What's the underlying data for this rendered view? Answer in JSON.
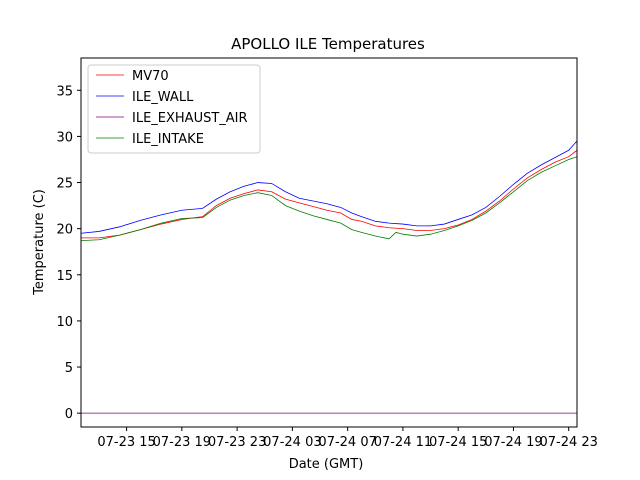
{
  "chart_data": {
    "type": "line",
    "title": "APOLLO ILE Temperatures",
    "xlabel": "Date (GMT)",
    "ylabel": "Temperature (C)",
    "x_unit": "hours since 07-23 00:00 GMT",
    "xlim": [
      11.7,
      47.6
    ],
    "ylim": [
      -1.5,
      38.5
    ],
    "yticks": [
      0,
      5,
      10,
      15,
      20,
      25,
      30,
      35
    ],
    "xticks": [
      {
        "value": 15,
        "label": "07-23 15"
      },
      {
        "value": 19,
        "label": "07-23 19"
      },
      {
        "value": 23,
        "label": "07-23 23"
      },
      {
        "value": 27,
        "label": "07-24 03"
      },
      {
        "value": 31,
        "label": "07-24 07"
      },
      {
        "value": 35,
        "label": "07-24 11"
      },
      {
        "value": 39,
        "label": "07-24 15"
      },
      {
        "value": 43,
        "label": "07-24 19"
      },
      {
        "value": 47,
        "label": "07-24 23"
      }
    ],
    "legend_position": "upper-left",
    "series": [
      {
        "name": "MV70",
        "color": "#ff0000",
        "x": [
          11.7,
          13.0,
          14.5,
          16.0,
          17.5,
          19.0,
          20.5,
          21.5,
          22.5,
          23.5,
          24.5,
          25.5,
          26.5,
          27.5,
          28.5,
          29.5,
          30.5,
          31.3,
          32.0,
          33.0,
          34.0,
          35.0,
          36.0,
          37.0,
          38.0,
          39.0,
          40.0,
          41.0,
          42.0,
          43.0,
          44.0,
          45.0,
          46.0,
          47.0,
          47.6
        ],
        "values": [
          19.0,
          19.0,
          19.3,
          19.9,
          20.5,
          21.0,
          21.3,
          22.5,
          23.3,
          23.8,
          24.2,
          24.0,
          23.2,
          22.8,
          22.4,
          22.0,
          21.7,
          21.0,
          20.8,
          20.3,
          20.1,
          20.0,
          19.8,
          19.8,
          20.0,
          20.4,
          21.0,
          21.9,
          23.0,
          24.3,
          25.5,
          26.4,
          27.2,
          27.8,
          28.5
        ]
      },
      {
        "name": "ILE_WALL",
        "color": "#0000ff",
        "x": [
          11.7,
          13.0,
          14.5,
          16.0,
          17.5,
          19.0,
          20.5,
          21.5,
          22.5,
          23.5,
          24.5,
          25.5,
          26.5,
          27.5,
          28.5,
          29.5,
          30.5,
          31.3,
          32.0,
          33.0,
          34.0,
          35.0,
          36.0,
          37.0,
          38.0,
          39.0,
          40.0,
          41.0,
          42.0,
          43.0,
          44.0,
          45.0,
          46.0,
          47.0,
          47.6
        ],
        "values": [
          19.5,
          19.7,
          20.2,
          20.9,
          21.5,
          22.0,
          22.2,
          23.2,
          24.0,
          24.6,
          25.0,
          24.9,
          24.0,
          23.3,
          23.0,
          22.7,
          22.3,
          21.7,
          21.3,
          20.8,
          20.6,
          20.5,
          20.3,
          20.3,
          20.5,
          21.0,
          21.5,
          22.3,
          23.5,
          24.8,
          26.0,
          26.9,
          27.7,
          28.5,
          29.5
        ]
      },
      {
        "name": "ILE_EXHAUST_AIR",
        "color": "#800080",
        "x": [
          11.7,
          47.6
        ],
        "values": [
          0.0,
          0.0
        ]
      },
      {
        "name": "ILE_INTAKE",
        "color": "#008000",
        "x": [
          11.7,
          13.0,
          14.5,
          16.0,
          17.5,
          19.0,
          20.5,
          21.5,
          22.5,
          23.5,
          24.5,
          25.5,
          26.5,
          27.5,
          28.5,
          29.5,
          30.5,
          31.3,
          32.0,
          33.0,
          34.0,
          34.5,
          35.0,
          36.0,
          37.0,
          38.0,
          39.0,
          40.0,
          41.0,
          42.0,
          43.0,
          44.0,
          45.0,
          46.0,
          47.0,
          47.6
        ],
        "values": [
          18.7,
          18.8,
          19.3,
          19.9,
          20.6,
          21.1,
          21.2,
          22.3,
          23.1,
          23.6,
          23.9,
          23.6,
          22.5,
          21.9,
          21.4,
          21.0,
          20.6,
          19.9,
          19.6,
          19.2,
          18.9,
          19.6,
          19.4,
          19.2,
          19.4,
          19.8,
          20.3,
          20.9,
          21.7,
          22.8,
          24.0,
          25.2,
          26.1,
          26.8,
          27.5,
          27.8
        ]
      }
    ]
  }
}
